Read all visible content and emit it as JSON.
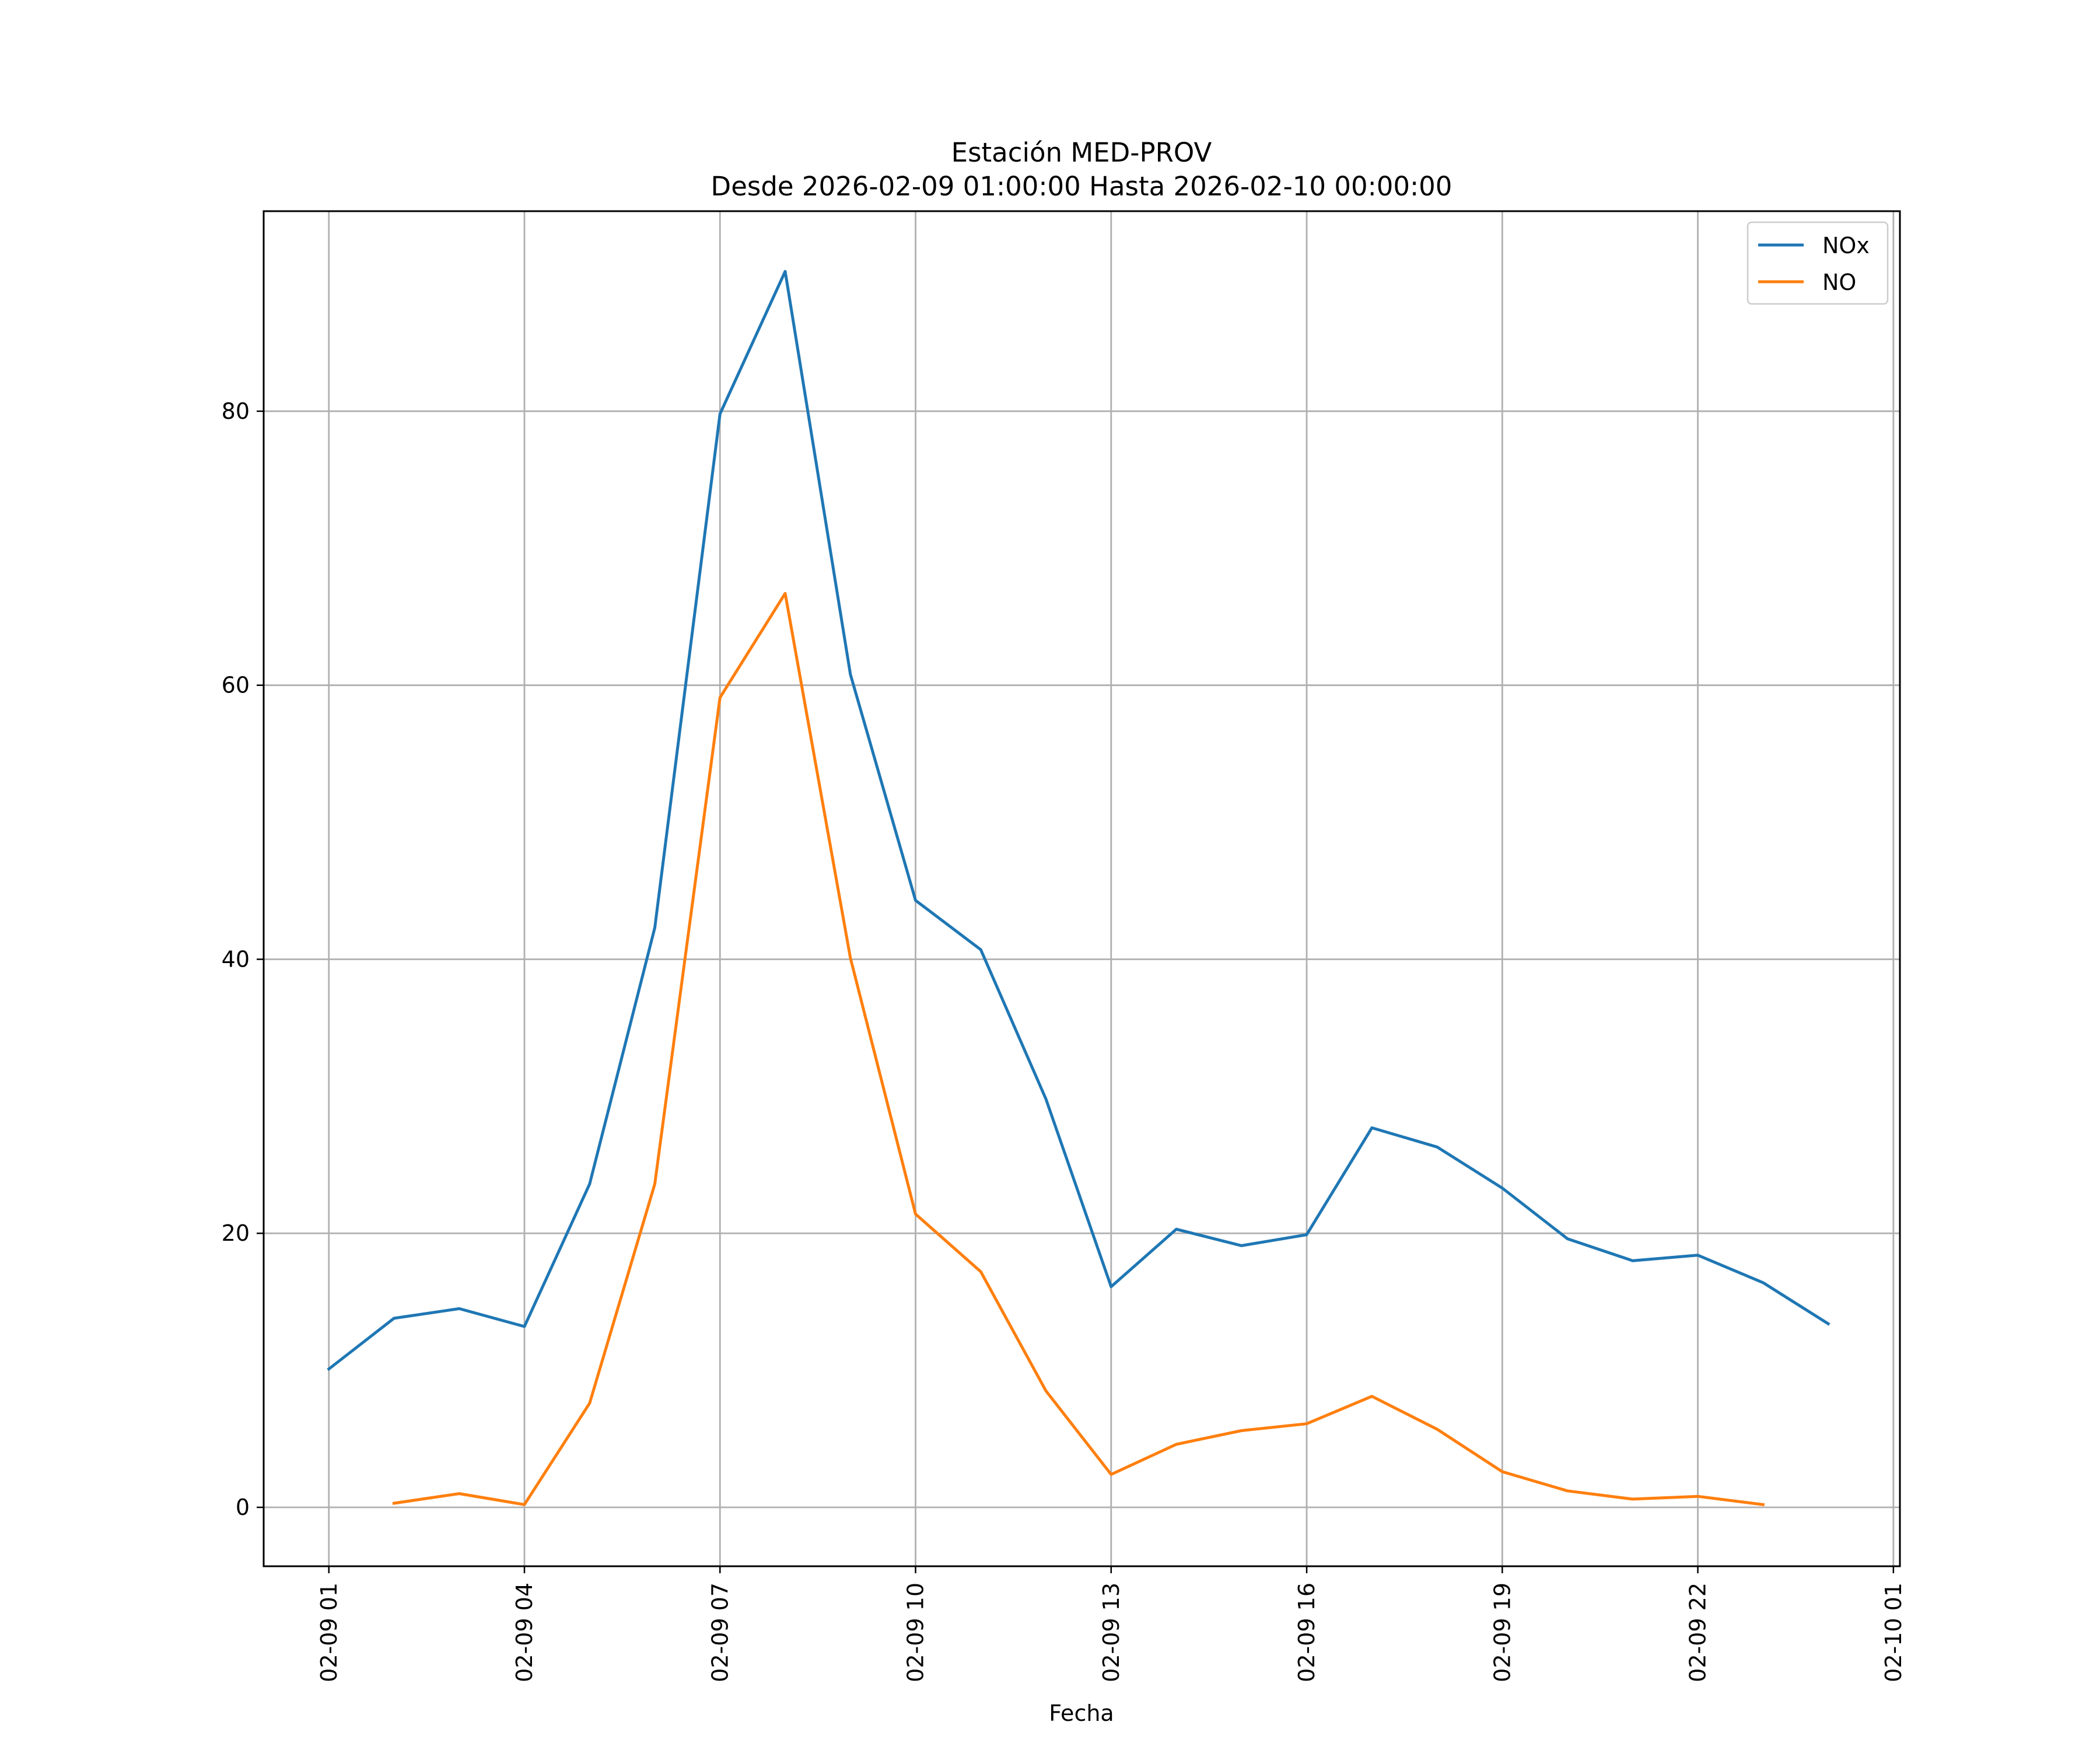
{
  "chart_data": {
    "type": "line",
    "title_lines": [
      "Estación MED-PROV",
      "Desde 2026-02-09 01:00:00 Hasta 2026-02-10 00:00:00"
    ],
    "xlabel": "Fecha",
    "ylabel": "",
    "x": [
      "02-09 01",
      "02-09 02",
      "02-09 03",
      "02-09 04",
      "02-09 05",
      "02-09 06",
      "02-09 07",
      "02-09 08",
      "02-09 09",
      "02-09 10",
      "02-09 11",
      "02-09 12",
      "02-09 13",
      "02-09 14",
      "02-09 15",
      "02-09 16",
      "02-09 17",
      "02-09 18",
      "02-09 19",
      "02-09 20",
      "02-09 21",
      "02-09 22",
      "02-09 23",
      "02-10 00"
    ],
    "xticks": [
      "02-09 01",
      "02-09 04",
      "02-09 07",
      "02-09 10",
      "02-09 13",
      "02-09 16",
      "02-09 19",
      "02-09 22",
      "02-10 01"
    ],
    "xlim": [
      "2026-02-09 00:00",
      "2026-02-10 01:06"
    ],
    "yticks": [
      0,
      20,
      40,
      60,
      80
    ],
    "ylim": [
      -4.3,
      94.6
    ],
    "grid": true,
    "legend_position": "top-right",
    "series": [
      {
        "name": "NOx",
        "color": "#1f77b4",
        "values": [
          10.1,
          13.8,
          14.5,
          13.2,
          23.6,
          42.3,
          79.8,
          90.2,
          60.8,
          44.3,
          40.7,
          29.8,
          16.1,
          20.3,
          19.1,
          19.9,
          27.7,
          26.3,
          23.3,
          19.6,
          18.0,
          18.4,
          16.4,
          13.4
        ]
      },
      {
        "name": "NO",
        "color": "#ff7f0e",
        "values": [
          null,
          0.3,
          1.0,
          0.2,
          7.6,
          23.6,
          59.1,
          66.7,
          40.1,
          21.4,
          17.2,
          8.5,
          2.4,
          4.6,
          5.6,
          6.1,
          8.1,
          5.7,
          2.6,
          1.2,
          0.6,
          0.8,
          0.2,
          null
        ]
      }
    ]
  }
}
